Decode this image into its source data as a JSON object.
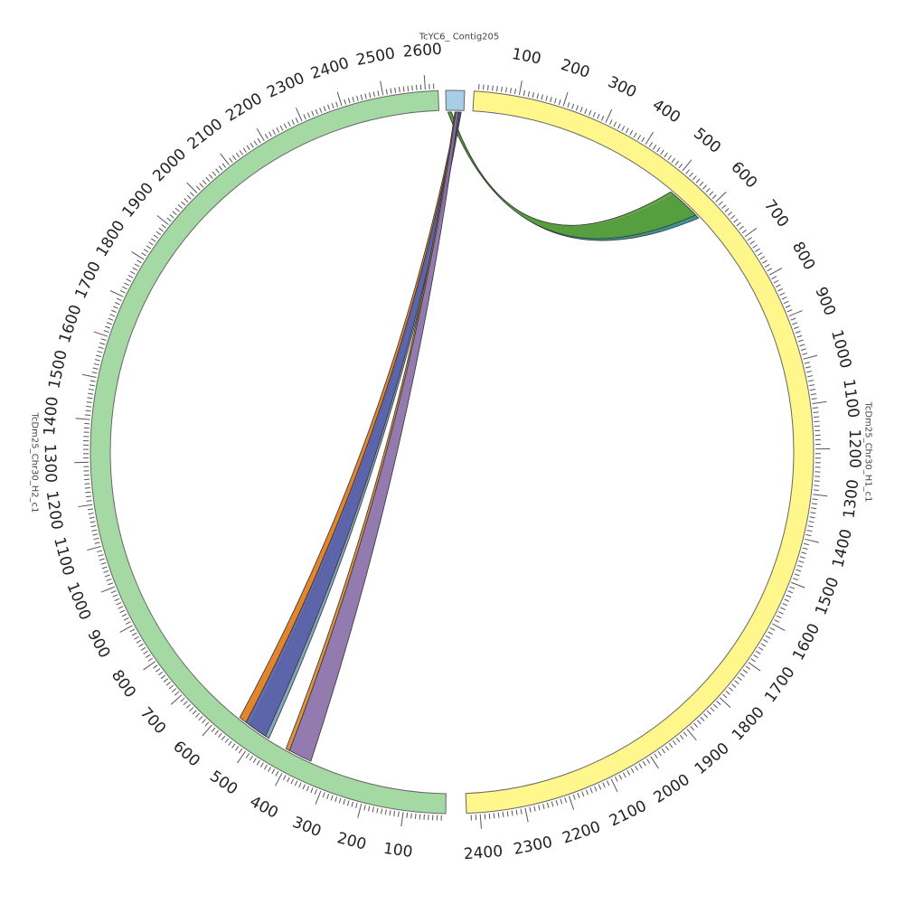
{
  "segments": [
    {
      "id": "contig205",
      "name": "TcYC6_ Contig205",
      "length": 20,
      "color": "#a8cde6",
      "ticks": []
    },
    {
      "id": "h1",
      "name": "TcDm25_Chr30_H1_c1",
      "length": 2430,
      "color": "#fff68c",
      "ticks": [
        "100",
        "200",
        "300",
        "400",
        "500",
        "600",
        "700",
        "800",
        "900",
        "1000",
        "1100",
        "1200",
        "1300",
        "1400",
        "1500",
        "1600",
        "1700",
        "1800",
        "1900",
        "2000",
        "2100",
        "2200",
        "2300",
        "2400"
      ]
    },
    {
      "id": "h2",
      "name": "TcDm25_Chr30_H2_c1",
      "length": 2630,
      "color": "#a4d9a4",
      "ticks": [
        "100",
        "200",
        "300",
        "400",
        "500",
        "600",
        "700",
        "800",
        "900",
        "1000",
        "1100",
        "1200",
        "1300",
        "1400",
        "1500",
        "1600",
        "1700",
        "1800",
        "1900",
        "2000",
        "2100",
        "2200",
        "2300",
        "2400",
        "2500",
        "2600"
      ]
    }
  ],
  "links": [
    {
      "from": "contig205",
      "from_range": [
        3,
        6
      ],
      "to": "h1",
      "to_range": [
        520,
        600
      ],
      "color": "#2e8b8b"
    },
    {
      "from": "contig205",
      "from_range": [
        2,
        6
      ],
      "to": "h1",
      "to_range": [
        510,
        590
      ],
      "color": "#58a03a"
    },
    {
      "from": "contig205",
      "from_range": [
        14,
        17
      ],
      "to": "h2",
      "to_range": [
        470,
        530
      ],
      "color": "#7aa0b8"
    },
    {
      "from": "contig205",
      "from_range": [
        13,
        16
      ],
      "to": "h2",
      "to_range": [
        480,
        540
      ],
      "color": "#5a5fa8"
    },
    {
      "from": "contig205",
      "from_range": [
        12,
        13
      ],
      "to": "h2",
      "to_range": [
        540,
        560
      ],
      "color": "#e07b1a"
    },
    {
      "from": "contig205",
      "from_range": [
        10,
        14
      ],
      "to": "h2",
      "to_range": [
        350,
        410
      ],
      "color": "#8a6fa8"
    },
    {
      "from": "contig205",
      "from_range": [
        10,
        11
      ],
      "to": "h2",
      "to_range": [
        410,
        420
      ],
      "color": "#d9892e"
    }
  ]
}
